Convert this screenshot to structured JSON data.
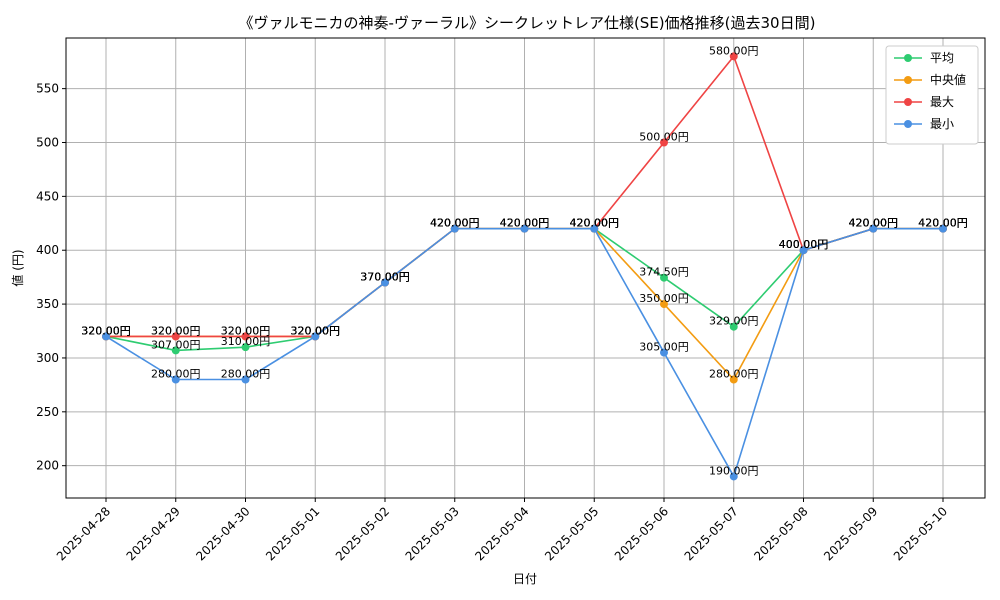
{
  "chart_data": {
    "type": "line",
    "title": "《ヴァルモニカの神奏-ヴァーラル》シークレットレア仕様(SE)価格推移(過去30日間)",
    "xlabel": "日付",
    "ylabel": "値 (円)",
    "ylim": [
      170,
      597
    ],
    "yticks": [
      200,
      250,
      300,
      350,
      400,
      450,
      500,
      550
    ],
    "grid": true,
    "legend_position": "top-right",
    "label_suffix": "円",
    "categories": [
      "2025-04-28",
      "2025-04-29",
      "2025-04-30",
      "2025-05-01",
      "2025-05-02",
      "2025-05-03",
      "2025-05-04",
      "2025-05-05",
      "2025-05-06",
      "2025-05-07",
      "2025-05-08",
      "2025-05-09",
      "2025-05-10"
    ],
    "series": [
      {
        "name": "平均",
        "color": "#2ecc71",
        "values": [
          320,
          307,
          310,
          320,
          370,
          420,
          420,
          420,
          374.5,
          329,
          400,
          420,
          420
        ]
      },
      {
        "name": "中央値",
        "color": "#f39c12",
        "values": [
          320,
          320,
          320,
          320,
          370,
          420,
          420,
          420,
          350,
          280,
          400,
          420,
          420
        ]
      },
      {
        "name": "最大",
        "color": "#ef4444",
        "values": [
          320,
          320,
          320,
          320,
          370,
          420,
          420,
          420,
          500,
          580,
          400,
          420,
          420
        ]
      },
      {
        "name": "最小",
        "color": "#4a90e2",
        "values": [
          320,
          280,
          280,
          320,
          370,
          420,
          420,
          420,
          305,
          190,
          400,
          420,
          420
        ]
      }
    ]
  }
}
